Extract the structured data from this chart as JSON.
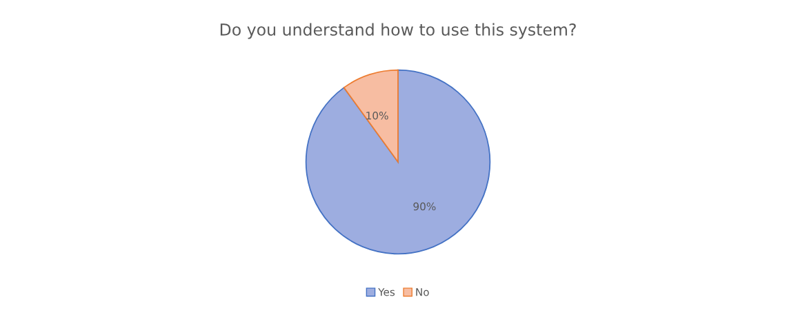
{
  "chart_data": {
    "type": "pie",
    "title": "Do you understand how to use this system?",
    "categories": [
      "Yes",
      "No"
    ],
    "values": [
      90,
      10
    ],
    "colors": [
      "#9dade0",
      "#f7bda2"
    ],
    "value_labels": [
      "90%",
      "10%"
    ],
    "legend": "bottom"
  }
}
